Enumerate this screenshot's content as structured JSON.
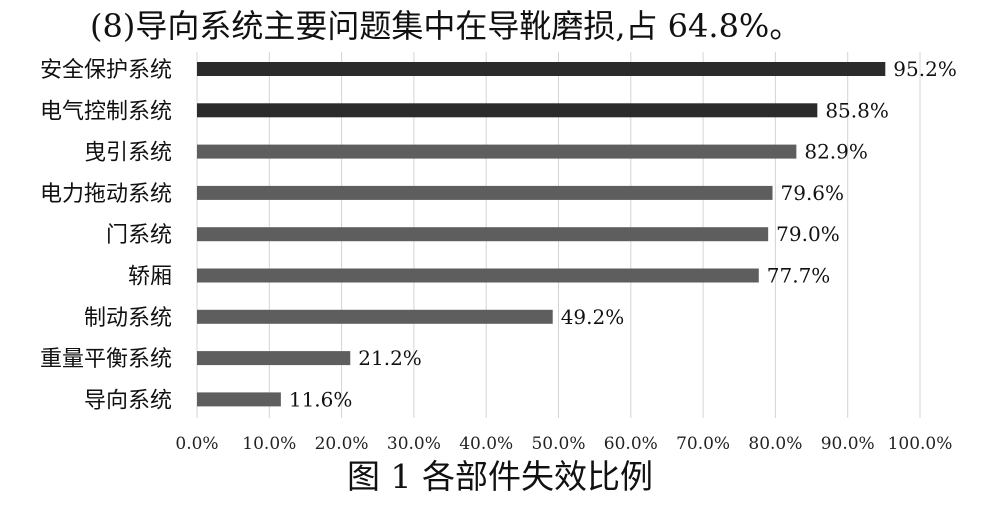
{
  "header_text": "(8)导向系统主要问题集中在导靴磨损,占 64.8%。",
  "figure_caption": "图 1 各部件失效比例",
  "chart_data": {
    "type": "bar",
    "orientation": "horizontal",
    "categories": [
      "安全保护系统",
      "电气控制系统",
      "曳引系统",
      "电力拖动系统",
      "门系统",
      "轿厢",
      "制动系统",
      "重量平衡系统",
      "导向系统"
    ],
    "values": [
      95.2,
      85.8,
      82.9,
      79.6,
      79.0,
      77.7,
      49.2,
      21.2,
      11.6
    ],
    "value_labels": [
      "95.2%",
      "85.8%",
      "82.9%",
      "79.6%",
      "79.0%",
      "77.7%",
      "49.2%",
      "21.2%",
      "11.6%"
    ],
    "xlim": [
      0,
      100
    ],
    "ticks": [
      "0.0%",
      "10.0%",
      "20.0%",
      "30.0%",
      "40.0%",
      "50.0%",
      "60.0%",
      "70.0%",
      "80.0%",
      "90.0%",
      "100.0%"
    ],
    "grid": true,
    "colors": {
      "dark": "#2b2b2b",
      "normal": "#5e5e5e",
      "grid": "#d4d4d4"
    },
    "dark_bar_count": 2
  }
}
